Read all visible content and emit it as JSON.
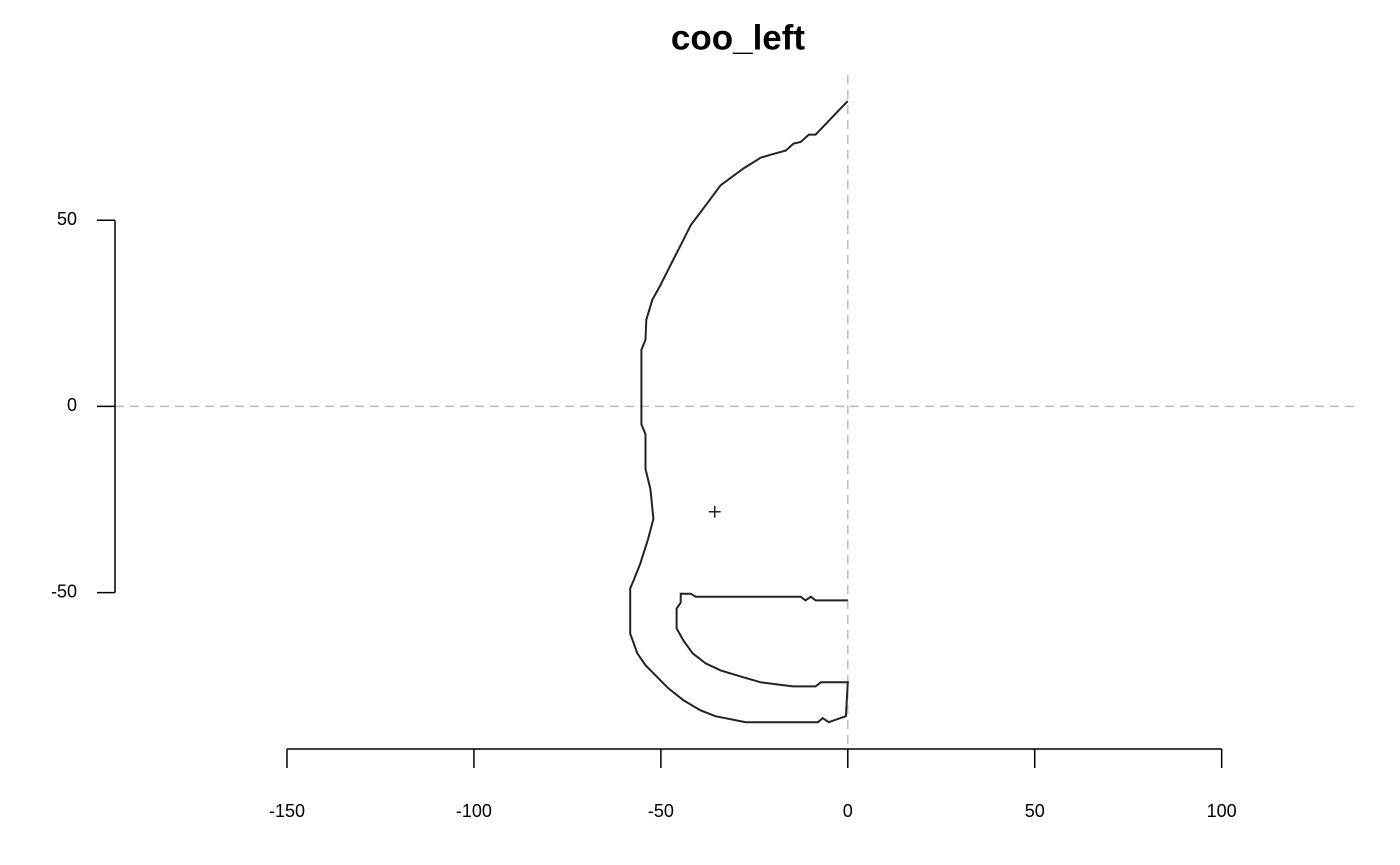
{
  "chart_data": {
    "type": "line",
    "title": "coo_left",
    "x": [
      0,
      -1,
      -8.6,
      -10.4,
      -12.6,
      -14.5,
      -16.6,
      -20.6,
      -23.3,
      -27.9,
      -34,
      -38,
      -42,
      -44.7,
      -47.4,
      -50.1,
      -52.3,
      -53.9,
      -54.1,
      -55.2,
      -55.2,
      -54.1,
      -54.1,
      -52.8,
      -52,
      -53.4,
      -55.5,
      -57.1,
      -58.2,
      -58.2,
      -56.3,
      -54.1,
      -48,
      -44,
      -39.4,
      -35.4,
      -27.3,
      -8,
      -6.7,
      -5.1,
      -0.5,
      0,
      -7.2,
      -8.6,
      -14.7,
      -23.3,
      -28.7,
      -34,
      -38,
      -41.5,
      -44,
      -45.8,
      -45.8,
      -44.7,
      -44.7,
      -42,
      -40.7,
      -12.6,
      -11.3,
      -9.9,
      -8.6,
      0
    ],
    "y": [
      82,
      81,
      73,
      73,
      71,
      70.6,
      68.7,
      67.6,
      66.8,
      63.9,
      59.4,
      54,
      48.7,
      43.3,
      38,
      32.6,
      28.6,
      23.3,
      17.9,
      15.2,
      -4.8,
      -7.5,
      -16.8,
      -22.2,
      -30.2,
      -35.6,
      -42.2,
      -46.3,
      -48.9,
      -61,
      -66.3,
      -69.5,
      -75.7,
      -78.9,
      -81.6,
      -83.2,
      -84.8,
      -84.8,
      -83.7,
      -84.8,
      -83.2,
      -74.1,
      -74.1,
      -75.2,
      -75.2,
      -74.1,
      -72.5,
      -70.9,
      -69,
      -66.3,
      -62.8,
      -59.6,
      -54.3,
      -52.7,
      -50.3,
      -50.3,
      -51.1,
      -51.1,
      -52.1,
      -51.1,
      -52.1,
      -52.1
    ],
    "color": "#222222",
    "centroid_x": -35.6,
    "centroid_y": -28.3,
    "hline": 0,
    "vline": 0,
    "xlim": [
      -196,
      137
    ],
    "ylim": [
      -92,
      89
    ],
    "xticks": [
      -150,
      -100,
      -50,
      0,
      50,
      100
    ],
    "yticks": [
      -50,
      0,
      50
    ]
  }
}
